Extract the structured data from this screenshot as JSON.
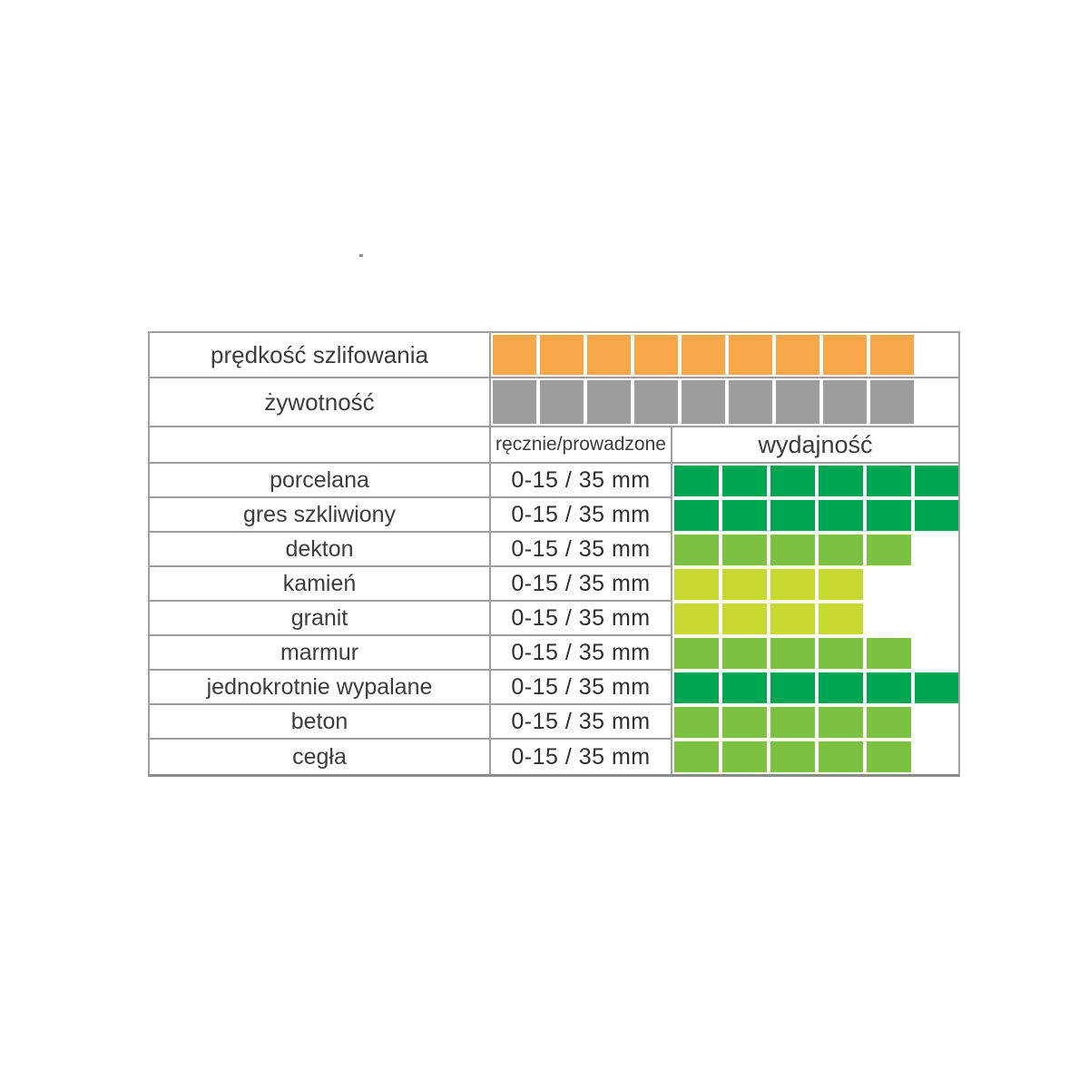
{
  "colors": {
    "orange": "#F7A648",
    "gray": "#9D9D9D",
    "dark_green": "#00A551",
    "mid_green": "#7CC142",
    "yellow_green": "#C7D931",
    "border": "#9f9f9f",
    "text": "#3c3c3c"
  },
  "top_rows": [
    {
      "id": "grinding-speed",
      "label": "prędkość szlifowania",
      "rating": 9,
      "max": 9,
      "color_key": "orange"
    },
    {
      "id": "lifetime",
      "label": "żywotność",
      "rating": 9,
      "max": 9,
      "color_key": "gray"
    }
  ],
  "header": {
    "hand_guided_label": "ręcznie/prowadzone",
    "performance_label": "wydajność"
  },
  "materials": [
    {
      "id": "porcelana",
      "label": "porcelana",
      "range": "0-15 / 35 mm",
      "rating": 6,
      "color_key": "dark_green"
    },
    {
      "id": "gres-szkliwiony",
      "label": "gres szkliwiony",
      "range": "0-15 / 35 mm",
      "rating": 6,
      "color_key": "dark_green"
    },
    {
      "id": "dekton",
      "label": "dekton",
      "range": "0-15 / 35 mm",
      "rating": 5,
      "color_key": "mid_green"
    },
    {
      "id": "kamien",
      "label": "kamień",
      "range": "0-15 / 35 mm",
      "rating": 4,
      "color_key": "yellow_green"
    },
    {
      "id": "granit",
      "label": "granit",
      "range": "0-15 / 35 mm",
      "rating": 4,
      "color_key": "yellow_green"
    },
    {
      "id": "marmur",
      "label": "marmur",
      "range": "0-15 / 35 mm",
      "rating": 5,
      "color_key": "mid_green"
    },
    {
      "id": "jednokrotnie-wypalane",
      "label": "jednokrotnie wypalane",
      "range": "0-15 / 35 mm",
      "rating": 6,
      "color_key": "dark_green"
    },
    {
      "id": "beton",
      "label": "beton",
      "range": "0-15 / 35 mm",
      "rating": 5,
      "color_key": "mid_green"
    },
    {
      "id": "cegla",
      "label": "cegła",
      "range": "0-15 / 35 mm",
      "rating": 5,
      "color_key": "mid_green"
    }
  ],
  "max_material_rating": 6,
  "chart_data": {
    "type": "table",
    "title": "",
    "description": "Rating matrix: squares per row indicate rating level",
    "top_series": [
      {
        "name": "prędkość szlifowania",
        "value": 9,
        "max": 9,
        "color": "#F7A648"
      },
      {
        "name": "żywotność",
        "value": 9,
        "max": 9,
        "color": "#9D9D9D"
      }
    ],
    "columns": [
      "",
      "ręcznie/prowadzone",
      "wydajność"
    ],
    "rows": [
      [
        "porcelana",
        "0-15 / 35 mm",
        6
      ],
      [
        "gres szkliwiony",
        "0-15 / 35 mm",
        6
      ],
      [
        "dekton",
        "0-15 / 35 mm",
        5
      ],
      [
        "kamień",
        "0-15 / 35 mm",
        4
      ],
      [
        "granit",
        "0-15 / 35 mm",
        4
      ],
      [
        "marmur",
        "0-15 / 35 mm",
        5
      ],
      [
        "jednokrotnie wypalane",
        "0-15 / 35 mm",
        6
      ],
      [
        "beton",
        "0-15 / 35 mm",
        5
      ],
      [
        "cegła",
        "0-15 / 35 mm",
        5
      ]
    ],
    "rating_max": 6,
    "rating_colors": {
      "6": "#00A551",
      "5": "#7CC142",
      "4": "#C7D931"
    },
    "legend_position": "none",
    "grid": true
  }
}
